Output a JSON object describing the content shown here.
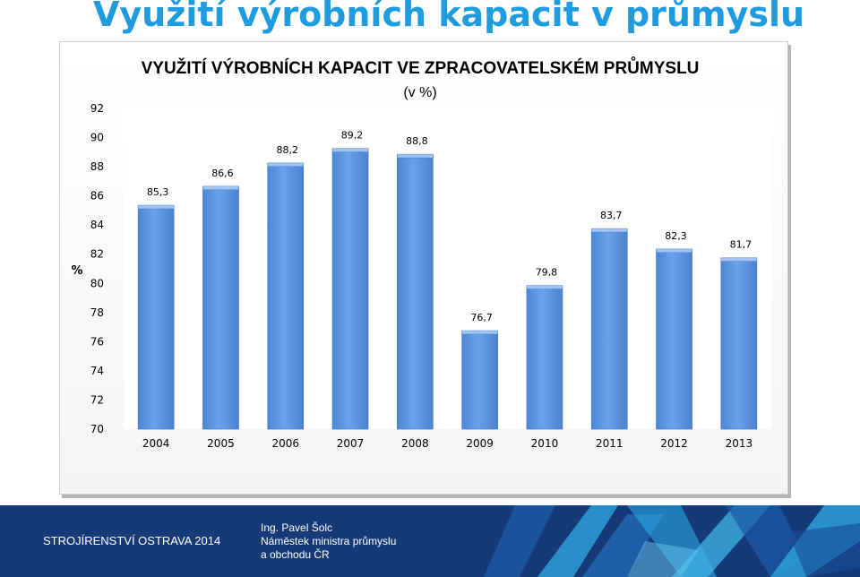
{
  "slide": {
    "title": "Využití výrobních kapacit v průmyslu"
  },
  "chart_data": {
    "type": "bar",
    "title": "VYUŽITÍ VÝROBNÍCH KAPACIT VE ZPRACOVATELSKÉM PRŮMYSLU",
    "subtitle": "(v %)",
    "ylabel": "%",
    "xlabel": "",
    "categories": [
      "2004",
      "2005",
      "2006",
      "2007",
      "2008",
      "2009",
      "2010",
      "2011",
      "2012",
      "2013"
    ],
    "values": [
      85.3,
      86.6,
      88.2,
      89.2,
      88.8,
      76.7,
      79.8,
      83.7,
      82.3,
      81.7
    ],
    "value_labels": [
      "85,3",
      "86,6",
      "88,2",
      "89,2",
      "88,8",
      "76,7",
      "79,8",
      "83,7",
      "82,3",
      "81,7"
    ],
    "ylim": [
      70,
      92
    ],
    "yticks": [
      "70",
      "72",
      "74",
      "76",
      "78",
      "80",
      "82",
      "84",
      "86",
      "88",
      "90",
      "92"
    ],
    "grid": false,
    "legend": "none",
    "bar_color": "#5b95e0"
  },
  "footer": {
    "event": "STROJÍRENSTVÍ OSTRAVA 2014",
    "presenter_name": "Ing. Pavel Šolc",
    "presenter_role_line1": "Náměstek ministra průmyslu",
    "presenter_role_line2": "a obchodu ČR",
    "background_color": "#163a78"
  }
}
